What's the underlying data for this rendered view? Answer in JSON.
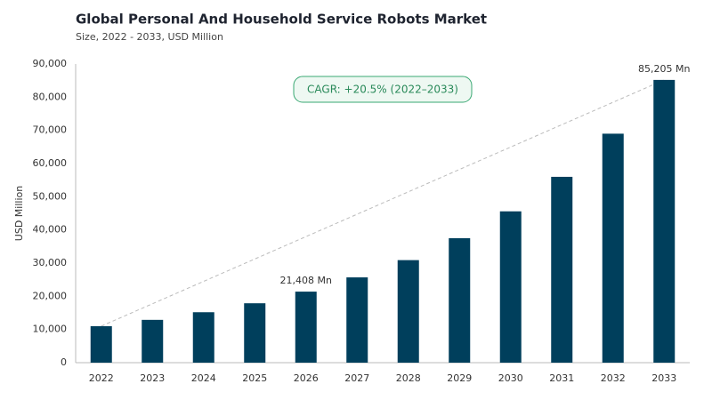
{
  "chart_data": {
    "type": "bar",
    "title": "Global Personal And Household Service Robots Market",
    "subtitle": "Size, 2022 - 2033, USD Million",
    "y_label": "USD Million",
    "annotation": "CAGR: +20.5% (2022–2033)",
    "categories": [
      "2022",
      "2023",
      "2024",
      "2025",
      "2026",
      "2027",
      "2028",
      "2029",
      "2030",
      "2031",
      "2032",
      "2033"
    ],
    "values": [
      11000,
      12900,
      15200,
      17900,
      21408,
      25700,
      30900,
      37500,
      45600,
      56000,
      69000,
      85205
    ],
    "value_labels": [
      null,
      null,
      null,
      null,
      "21,408 Mn",
      null,
      null,
      null,
      null,
      null,
      null,
      "85,205 Mn"
    ],
    "color": "#003f5c",
    "ylim": [
      0,
      90000
    ],
    "yticks": [
      0,
      {
        "value": 10000,
        "label": "10,000"
      },
      {
        "value": 20000,
        "label": "20,000"
      },
      {
        "value": 30000,
        "label": "30,000"
      },
      {
        "value": 40000,
        "label": "40,000"
      },
      {
        "value": 50000,
        "label": "50,000"
      },
      {
        "value": 60000,
        "label": "60,000"
      },
      {
        "value": 70000,
        "label": "70,000"
      },
      {
        "value": 80000,
        "label": "80,000"
      },
      {
        "value": 90000,
        "label": "90,000"
      }
    ],
    "grid": false
  }
}
